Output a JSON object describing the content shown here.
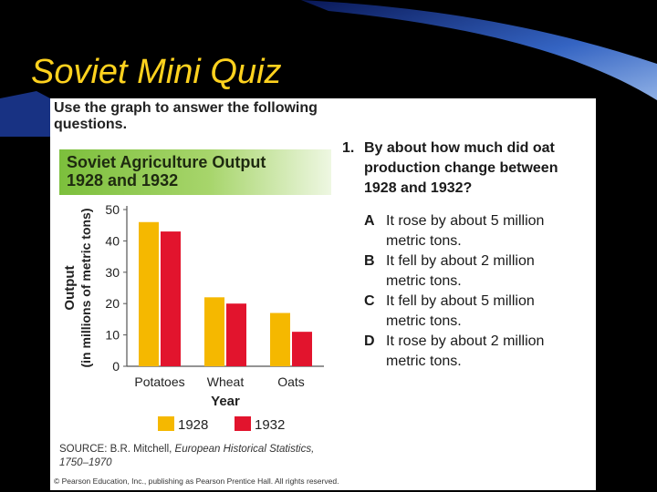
{
  "slide": {
    "title": "Soviet Mini Quiz"
  },
  "instructions": "Use the graph to answer the following questions.",
  "chart_header": {
    "line1": "Soviet Agriculture Output",
    "line2": "1928 and 1932"
  },
  "chart_data": {
    "type": "bar",
    "categories": [
      "Potatoes",
      "Wheat",
      "Oats"
    ],
    "series": [
      {
        "name": "1928",
        "values": [
          46,
          22,
          17
        ],
        "color": "#f5b800"
      },
      {
        "name": "1932",
        "values": [
          43,
          20,
          11
        ],
        "color": "#e2142d"
      }
    ],
    "xlabel": "Year",
    "ylabel_line1": "Output",
    "ylabel_line2": "(in millions of metric tons)",
    "ylim": [
      0,
      50
    ],
    "yticks": [
      0,
      10,
      20,
      30,
      40,
      50
    ],
    "grid": false,
    "legend": "bottom"
  },
  "source": {
    "prefix": "SOURCE: B.R. Mitchell, ",
    "italic": "European Historical Statistics, 1750–1970"
  },
  "copyright": "© Pearson Education, Inc., publishing as Pearson Prentice Hall. All rights reserved.",
  "question": {
    "number": "1.",
    "text": "By about how much did oat production change between 1928 and 1932?",
    "choices": [
      {
        "letter": "A",
        "text": "It rose by about 5 million metric tons."
      },
      {
        "letter": "B",
        "text": "It fell by about 2 million metric tons."
      },
      {
        "letter": "C",
        "text": "It fell by about 5 million metric tons."
      },
      {
        "letter": "D",
        "text": "It rose by about 2 million metric tons."
      }
    ]
  }
}
